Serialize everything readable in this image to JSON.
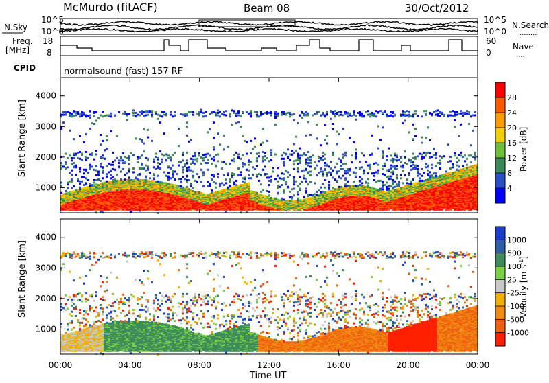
{
  "header": {
    "station": "McMurdo (fitACF)",
    "beam": "Beam 08",
    "date": "30/Oct/2012"
  },
  "side_labels": {
    "nsky": "N.Sky",
    "nsearch": "N.Search",
    "nsearch_dots": "........",
    "freq_line1": "Freq.",
    "freq_line2": "[MHz]",
    "nave": "Nave",
    "nave_dots": "....",
    "cpid": "CPID"
  },
  "top_axes": {
    "noise_left_ticks": [
      "10^5",
      "10^0"
    ],
    "noise_right_ticks": [
      "10^5",
      "10^0"
    ],
    "freq_ticks": [
      "18",
      "8"
    ],
    "nave_ticks": [
      "60",
      "0"
    ]
  },
  "cpid_text": "normalsound (fast) 157 RF",
  "colors": {
    "power_scale": [
      "#0000ff",
      "#2a4ec8",
      "#3a8a5a",
      "#6fbf3a",
      "#f0d000",
      "#ff9a00",
      "#ff5a00",
      "#ff0000"
    ],
    "velocity_scale": [
      "#1a3fd0",
      "#2c5fa8",
      "#3c8c5c",
      "#7ad040",
      "#c8c8c8",
      "#f0b000",
      "#f08a10",
      "#f06010",
      "#ff2000"
    ]
  },
  "chart_data": [
    {
      "type": "heatmap",
      "title": "Power",
      "ylabel": "Slant Range [km]",
      "y_ticks": [
        "1000",
        "2000",
        "3000",
        "4000"
      ],
      "ylim": [
        180,
        4600
      ],
      "colorbar_label": "Power [dB]",
      "colorbar_ticks": [
        "4",
        "8",
        "12",
        "16",
        "20",
        "24",
        "28"
      ],
      "colorbar_range": [
        0,
        32
      ]
    },
    {
      "type": "heatmap",
      "title": "Velocity",
      "ylabel": "Slant Range [km]",
      "y_ticks": [
        "1000",
        "2000",
        "3000",
        "4000"
      ],
      "ylim": [
        180,
        4600
      ],
      "colorbar_label": "Velocity [m s^-1]",
      "colorbar_ticks": [
        "1000",
        "500",
        "100",
        "25",
        "-25",
        "-100",
        "-500",
        "-1000"
      ]
    }
  ],
  "x_axis": {
    "label": "Time UT",
    "ticks": [
      "00:00",
      "04:00",
      "08:00",
      "12:00",
      "16:00",
      "20:00",
      "00:00"
    ]
  }
}
